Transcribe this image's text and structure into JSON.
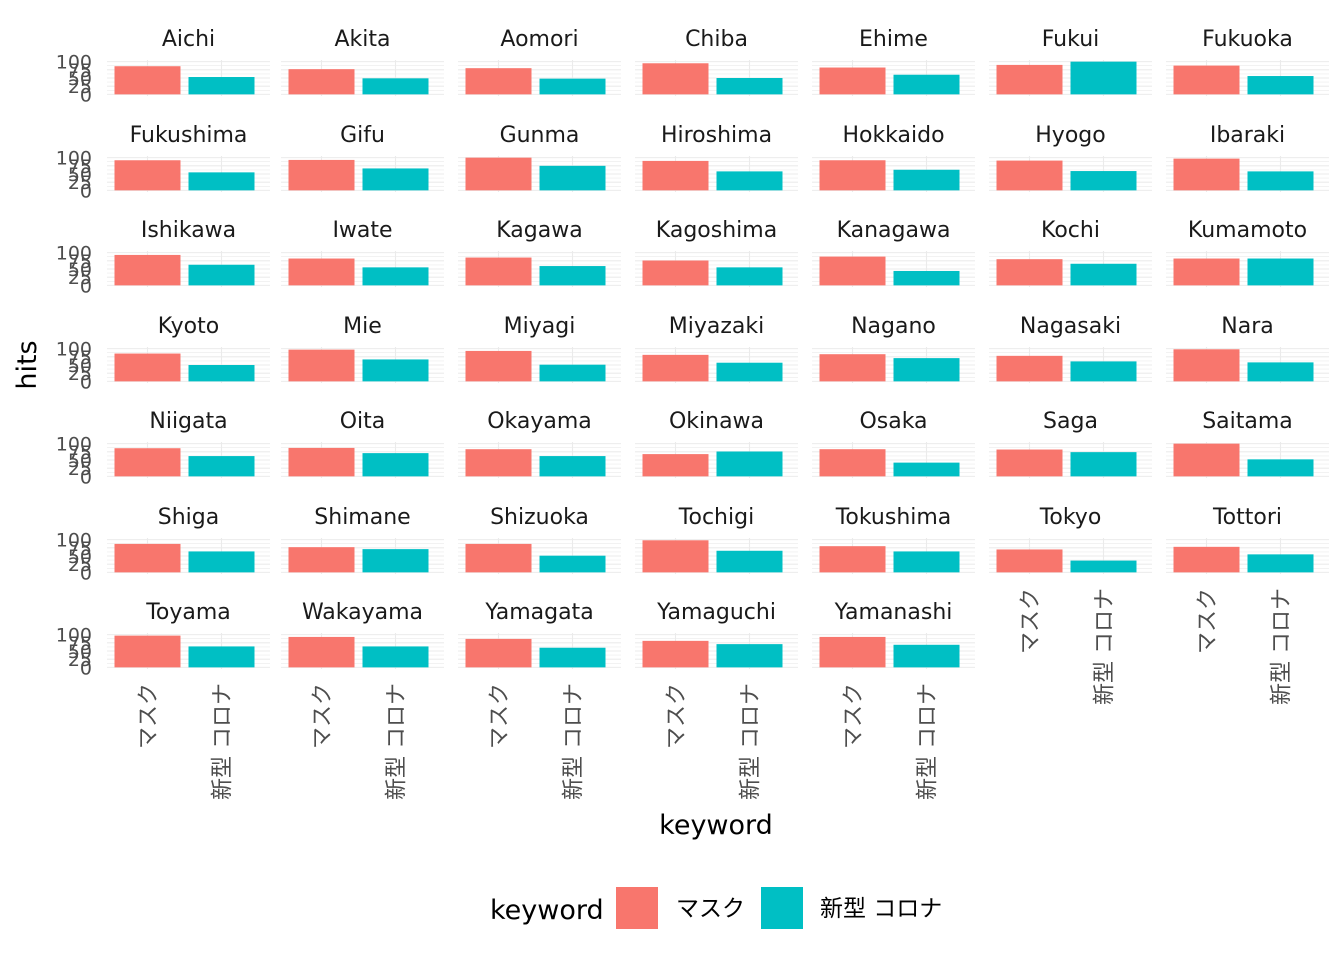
{
  "chart_data": {
    "type": "bar",
    "facet_by": "prefecture",
    "xlabel": "keyword",
    "ylabel": "hits",
    "ylim": [
      0,
      100
    ],
    "yticks": [
      0,
      25,
      50,
      75,
      100
    ],
    "categories": [
      "マスク",
      "新型 コロナ"
    ],
    "legend": {
      "title": "keyword",
      "placement": "bottom",
      "entries": [
        {
          "label": "マスク",
          "color": "#F8766D"
        },
        {
          "label": "新型 コロナ",
          "color": "#00BFC4"
        }
      ]
    },
    "panels": [
      {
        "name": "Aichi",
        "values": [
          86,
          53
        ]
      },
      {
        "name": "Akita",
        "values": [
          77,
          49
        ]
      },
      {
        "name": "Aomori",
        "values": [
          80,
          48
        ]
      },
      {
        "name": "Chiba",
        "values": [
          95,
          50
        ]
      },
      {
        "name": "Ehime",
        "values": [
          82,
          60
        ]
      },
      {
        "name": "Fukui",
        "values": [
          90,
          100
        ]
      },
      {
        "name": "Fukuoka",
        "values": [
          88,
          56
        ]
      },
      {
        "name": "Fukushima",
        "values": [
          92,
          55
        ]
      },
      {
        "name": "Gifu",
        "values": [
          93,
          67
        ]
      },
      {
        "name": "Gunma",
        "values": [
          100,
          75
        ]
      },
      {
        "name": "Hiroshima",
        "values": [
          90,
          58
        ]
      },
      {
        "name": "Hokkaido",
        "values": [
          92,
          63
        ]
      },
      {
        "name": "Hyogo",
        "values": [
          91,
          59
        ]
      },
      {
        "name": "Ibaraki",
        "values": [
          97,
          58
        ]
      },
      {
        "name": "Ishikawa",
        "values": [
          93,
          63
        ]
      },
      {
        "name": "Iwate",
        "values": [
          82,
          55
        ]
      },
      {
        "name": "Kagawa",
        "values": [
          85,
          59
        ]
      },
      {
        "name": "Kagoshima",
        "values": [
          76,
          55
        ]
      },
      {
        "name": "Kanagawa",
        "values": [
          88,
          44
        ]
      },
      {
        "name": "Kochi",
        "values": [
          80,
          66
        ]
      },
      {
        "name": "Kumamoto",
        "values": [
          82,
          82
        ]
      },
      {
        "name": "Kyoto",
        "values": [
          85,
          50
        ]
      },
      {
        "name": "Mie",
        "values": [
          97,
          67
        ]
      },
      {
        "name": "Miyagi",
        "values": [
          93,
          51
        ]
      },
      {
        "name": "Miyazaki",
        "values": [
          81,
          57
        ]
      },
      {
        "name": "Nagano",
        "values": [
          83,
          71
        ]
      },
      {
        "name": "Nagasaki",
        "values": [
          78,
          61
        ]
      },
      {
        "name": "Nara",
        "values": [
          98,
          58
        ]
      },
      {
        "name": "Niigata",
        "values": [
          86,
          62
        ]
      },
      {
        "name": "Oita",
        "values": [
          87,
          71
        ]
      },
      {
        "name": "Okayama",
        "values": [
          83,
          62
        ]
      },
      {
        "name": "Okinawa",
        "values": [
          68,
          76
        ]
      },
      {
        "name": "Osaka",
        "values": [
          83,
          42
        ]
      },
      {
        "name": "Saga",
        "values": [
          82,
          74
        ]
      },
      {
        "name": "Saitama",
        "values": [
          100,
          52
        ]
      },
      {
        "name": "Shiga",
        "values": [
          87,
          64
        ]
      },
      {
        "name": "Shimane",
        "values": [
          77,
          71
        ]
      },
      {
        "name": "Shizuoka",
        "values": [
          87,
          51
        ]
      },
      {
        "name": "Tochigi",
        "values": [
          98,
          66
        ]
      },
      {
        "name": "Tokushima",
        "values": [
          80,
          64
        ]
      },
      {
        "name": "Tokyo",
        "values": [
          70,
          36
        ]
      },
      {
        "name": "Tottori",
        "values": [
          78,
          55
        ]
      },
      {
        "name": "Toyama",
        "values": [
          97,
          64
        ]
      },
      {
        "name": "Wakayama",
        "values": [
          93,
          64
        ]
      },
      {
        "name": "Yamagata",
        "values": [
          87,
          60
        ]
      },
      {
        "name": "Yamaguchi",
        "values": [
          81,
          71
        ]
      },
      {
        "name": "Yamanashi",
        "values": [
          93,
          69
        ]
      }
    ]
  }
}
